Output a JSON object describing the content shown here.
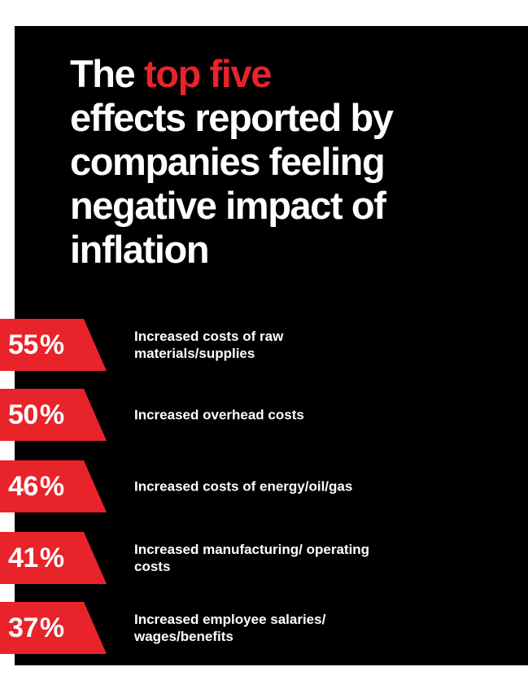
{
  "title": {
    "prefix": "The ",
    "highlight": "top five",
    "rest": "effects reported by companies feeling negative impact of inflation"
  },
  "colors": {
    "background": "#000000",
    "accent": "#e8232a",
    "text": "#ffffff"
  },
  "chart_data": {
    "type": "bar",
    "title": "The top five effects reported by companies feeling negative impact of inflation",
    "unit": "%",
    "categories": [
      "Increased costs of raw materials/supplies",
      "Increased overhead costs",
      "Increased costs of energy/oil/gas",
      "Increased manufacturing/ operating costs",
      "Increased employee salaries/ wages/benefits"
    ],
    "values": [
      55,
      50,
      46,
      41,
      37
    ],
    "labels": [
      "55",
      "50",
      "46",
      "41",
      "37"
    ]
  }
}
